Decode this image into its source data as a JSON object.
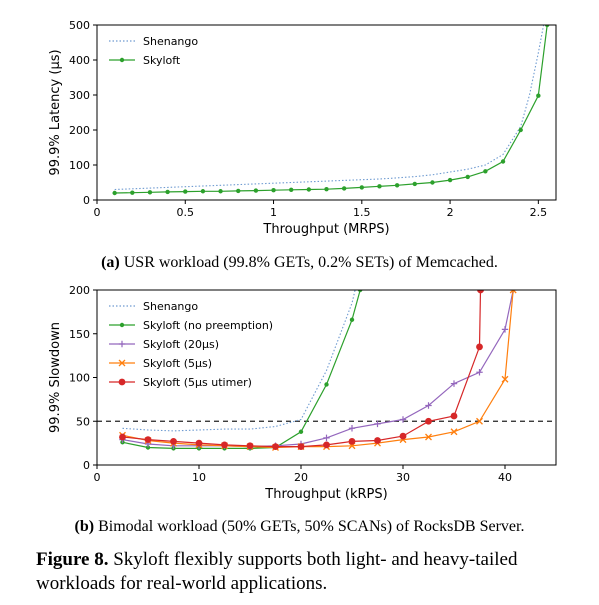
{
  "chart_data": [
    {
      "type": "line",
      "xlabel": "Throughput (MRPS)",
      "ylabel": "99.9% Latency (μs)",
      "xlim": [
        0,
        2.6
      ],
      "ylim": [
        0,
        500
      ],
      "xticks": [
        0,
        0.5,
        1,
        1.5,
        2,
        2.5
      ],
      "xtick_labels": [
        "0",
        "0.5",
        "1",
        "1.5",
        "2",
        "2.5"
      ],
      "yticks": [
        0,
        100,
        200,
        300,
        400,
        500
      ],
      "ytick_labels": [
        "0",
        "100",
        "200",
        "300",
        "400",
        "500"
      ],
      "legend": "top-left",
      "series": [
        {
          "name": "Shenango",
          "color": "#6f9bd1",
          "style": "dotted",
          "points": [
            [
              0.1,
              30
            ],
            [
              0.2,
              32
            ],
            [
              0.3,
              34
            ],
            [
              0.4,
              36
            ],
            [
              0.5,
              38
            ],
            [
              0.6,
              40
            ],
            [
              0.7,
              42
            ],
            [
              0.8,
              44
            ],
            [
              0.9,
              46
            ],
            [
              1.0,
              48
            ],
            [
              1.1,
              50
            ],
            [
              1.2,
              52
            ],
            [
              1.3,
              54
            ],
            [
              1.4,
              56
            ],
            [
              1.5,
              58
            ],
            [
              1.6,
              60
            ],
            [
              1.7,
              63
            ],
            [
              1.8,
              67
            ],
            [
              1.9,
              72
            ],
            [
              2.0,
              80
            ],
            [
              2.1,
              88
            ],
            [
              2.2,
              100
            ],
            [
              2.3,
              130
            ],
            [
              2.4,
              210
            ],
            [
              2.45,
              300
            ],
            [
              2.5,
              420
            ],
            [
              2.53,
              500
            ]
          ]
        },
        {
          "name": "Skyloft",
          "color": "#2ca02c",
          "style": "solid-dot",
          "points": [
            [
              0.1,
              20
            ],
            [
              0.2,
              21
            ],
            [
              0.3,
              22
            ],
            [
              0.4,
              23
            ],
            [
              0.5,
              24
            ],
            [
              0.6,
              25
            ],
            [
              0.7,
              25
            ],
            [
              0.8,
              26
            ],
            [
              0.9,
              27
            ],
            [
              1.0,
              28
            ],
            [
              1.1,
              29
            ],
            [
              1.2,
              30
            ],
            [
              1.3,
              31
            ],
            [
              1.4,
              33
            ],
            [
              1.5,
              36
            ],
            [
              1.6,
              39
            ],
            [
              1.7,
              42
            ],
            [
              1.8,
              46
            ],
            [
              1.9,
              50
            ],
            [
              2.0,
              57
            ],
            [
              2.1,
              66
            ],
            [
              2.2,
              82
            ],
            [
              2.3,
              110
            ],
            [
              2.4,
              200
            ],
            [
              2.5,
              298
            ],
            [
              2.55,
              500
            ]
          ]
        }
      ]
    },
    {
      "type": "line",
      "xlabel": "Throughput (kRPS)",
      "ylabel": "99.9% Slowdown",
      "xlim": [
        0,
        45
      ],
      "ylim": [
        0,
        200
      ],
      "xticks": [
        0,
        10,
        20,
        30,
        40
      ],
      "xtick_labels": [
        "0",
        "10",
        "20",
        "30",
        "40"
      ],
      "yticks": [
        0,
        50,
        100,
        150,
        200
      ],
      "ytick_labels": [
        "0",
        "50",
        "100",
        "150",
        "200"
      ],
      "reference_line": 50,
      "legend": "top-left",
      "series": [
        {
          "name": "Shenango",
          "color": "#6f9bd1",
          "style": "dotted",
          "points": [
            [
              2.5,
              42
            ],
            [
              5,
              40
            ],
            [
              7.5,
              39
            ],
            [
              10,
              40
            ],
            [
              12.5,
              41
            ],
            [
              15,
              41
            ],
            [
              17.5,
              44
            ],
            [
              20,
              52
            ],
            [
              22.5,
              108
            ],
            [
              25,
              185
            ],
            [
              25.3,
              200
            ]
          ]
        },
        {
          "name": "Skyloft (no preemption)",
          "color": "#2ca02c",
          "style": "solid-dot",
          "points": [
            [
              2.5,
              26
            ],
            [
              5,
              20
            ],
            [
              7.5,
              19
            ],
            [
              10,
              19
            ],
            [
              12.5,
              19
            ],
            [
              15,
              19
            ],
            [
              17.5,
              20
            ],
            [
              20,
              38
            ],
            [
              22.5,
              92
            ],
            [
              25,
              166
            ],
            [
              25.8,
              200
            ]
          ]
        },
        {
          "name": "Skyloft (20μs)",
          "color": "#9467bd",
          "style": "solid-plus",
          "points": [
            [
              2.5,
              29
            ],
            [
              5,
              24
            ],
            [
              7.5,
              22
            ],
            [
              10,
              22
            ],
            [
              12.5,
              22
            ],
            [
              15,
              21
            ],
            [
              17.5,
              22
            ],
            [
              20,
              24
            ],
            [
              22.5,
              31
            ],
            [
              25,
              42
            ],
            [
              27.5,
              47
            ],
            [
              30,
              52
            ],
            [
              32.5,
              68
            ],
            [
              35,
              93
            ],
            [
              37.5,
              106
            ],
            [
              40,
              155
            ],
            [
              40.8,
              200
            ]
          ]
        },
        {
          "name": "Skyloft (5μs)",
          "color": "#ff7f0e",
          "style": "solid-x",
          "points": [
            [
              2.5,
              34
            ],
            [
              5,
              28
            ],
            [
              7.5,
              25
            ],
            [
              10,
              23
            ],
            [
              12.5,
              22
            ],
            [
              15,
              21
            ],
            [
              17.5,
              20
            ],
            [
              20,
              21
            ],
            [
              22.5,
              21
            ],
            [
              25,
              22
            ],
            [
              27.5,
              25
            ],
            [
              30,
              29
            ],
            [
              32.5,
              32
            ],
            [
              35,
              38
            ],
            [
              37.5,
              50
            ],
            [
              40,
              98
            ],
            [
              40.8,
              200
            ]
          ]
        },
        {
          "name": "Skyloft (5μs utimer)",
          "color": "#d62728",
          "style": "solid-bigdot",
          "points": [
            [
              2.5,
              32
            ],
            [
              5,
              29
            ],
            [
              7.5,
              27
            ],
            [
              10,
              25
            ],
            [
              12.5,
              23
            ],
            [
              15,
              22
            ],
            [
              17.5,
              21
            ],
            [
              20,
              21
            ],
            [
              22.5,
              23
            ],
            [
              25,
              27
            ],
            [
              27.5,
              28
            ],
            [
              30,
              33
            ],
            [
              32.5,
              50
            ],
            [
              35,
              56
            ],
            [
              37.5,
              135
            ],
            [
              37.6,
              200
            ]
          ]
        }
      ]
    }
  ],
  "captions": {
    "a_label": "(a)",
    "a_text": " USR workload (99.8% GETs, 0.2% SETs) of Memcached.",
    "b_label": "(b)",
    "b_text": " Bimodal workload (50% GETs, 50% SCANs) of RocksDB Server.",
    "figure_label": "Figure 8.",
    "figure_text": " Skyloft flexibly supports both light- and heavy-tailed workloads for real-world applications."
  }
}
